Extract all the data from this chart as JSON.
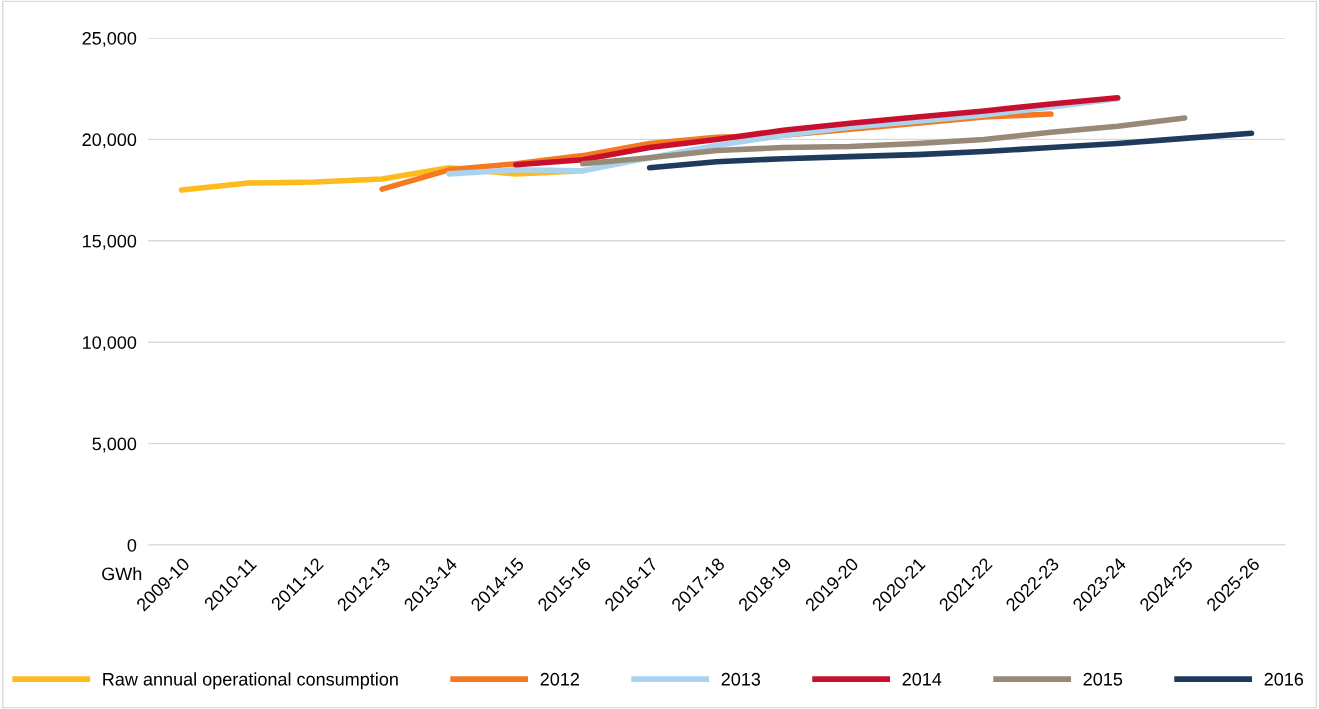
{
  "chart_data": {
    "type": "line",
    "ylabel": "GWh",
    "categories": [
      "2009-10",
      "2010-11",
      "2011-12",
      "2012-13",
      "2013-14",
      "2014-15",
      "2015-16",
      "2016-17",
      "2017-18",
      "2018-19",
      "2019-20",
      "2020-21",
      "2021-22",
      "2022-23",
      "2023-24",
      "2024-25",
      "2025-26"
    ],
    "series": [
      {
        "name": "Raw annual operational consumption",
        "color": "#fdbb1e",
        "values": [
          17500,
          17850,
          17900,
          18050,
          18600,
          18300,
          18450,
          null,
          null,
          null,
          null,
          null,
          null,
          null,
          null,
          null,
          null
        ]
      },
      {
        "name": "2012",
        "color": "#f47920",
        "values": [
          null,
          null,
          null,
          17550,
          18500,
          18800,
          19200,
          19800,
          20100,
          20200,
          20500,
          20800,
          21100,
          21250,
          null,
          null,
          null
        ]
      },
      {
        "name": "2013",
        "color": "#abd3ef",
        "values": [
          null,
          null,
          null,
          null,
          18300,
          18500,
          18450,
          19100,
          19700,
          20200,
          20600,
          20900,
          21200,
          21600,
          22000,
          null,
          null
        ]
      },
      {
        "name": "2014",
        "color": "#c8102e",
        "values": [
          null,
          null,
          null,
          null,
          null,
          18750,
          19000,
          19600,
          20000,
          20450,
          20800,
          21100,
          21400,
          21750,
          22050,
          null,
          null
        ]
      },
      {
        "name": "2015",
        "color": "#988a76",
        "values": [
          null,
          null,
          null,
          null,
          null,
          null,
          18800,
          19100,
          19450,
          19600,
          19650,
          19800,
          20000,
          20350,
          20650,
          21050,
          null
        ]
      },
      {
        "name": "2016",
        "color": "#1e3b5c",
        "values": [
          null,
          null,
          null,
          null,
          null,
          null,
          null,
          18600,
          18900,
          19050,
          19150,
          19250,
          19400,
          19600,
          19800,
          20050,
          20300
        ]
      }
    ],
    "ylim": [
      0,
      25000
    ],
    "yticks": [
      {
        "value": 0,
        "label": "0"
      },
      {
        "value": 5000,
        "label": "5,000"
      },
      {
        "value": 10000,
        "label": "10,000"
      },
      {
        "value": 15000,
        "label": "15,000"
      },
      {
        "value": 20000,
        "label": "20,000"
      },
      {
        "value": 25000,
        "label": "25,000"
      }
    ],
    "grid": "y",
    "legend": "bottom",
    "marker": "none",
    "line_style": "solid"
  }
}
